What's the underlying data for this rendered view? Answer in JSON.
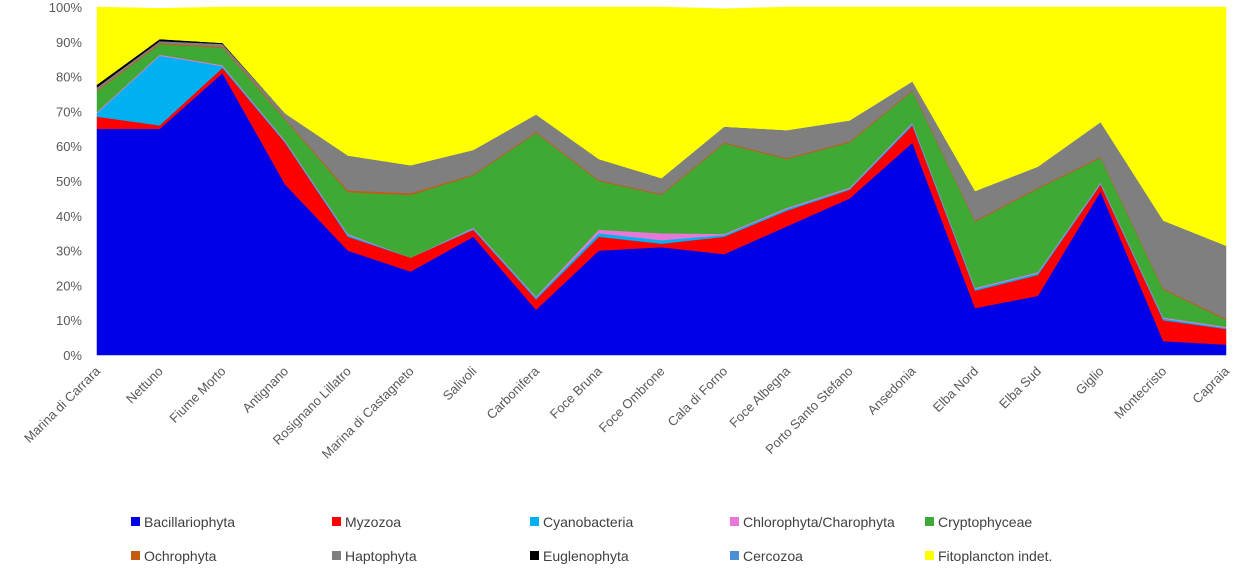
{
  "chart_data": {
    "type": "area",
    "stacked": true,
    "normalized_percent": true,
    "title": "",
    "xlabel": "",
    "ylabel": "",
    "ylim": [
      0,
      100
    ],
    "y_ticks": [
      "0%",
      "10%",
      "20%",
      "30%",
      "40%",
      "50%",
      "60%",
      "70%",
      "80%",
      "90%",
      "100%"
    ],
    "legend_position": "bottom",
    "categories": [
      "Marina di Carrara",
      "Nettuno",
      "Fiume Morto",
      "Antignano",
      "Rosignano Lillatro",
      "Marina di Castagneto",
      "Salivoli",
      "Carbonifera",
      "Foce Bruna",
      "Foce Ombrone",
      "Cala di Forno",
      "Foce Albegna",
      "Porto Santo Stefano",
      "Ansedonia",
      "Elba Nord",
      "Elba Sud",
      "Giglio",
      "Montecristo",
      "Capraia"
    ],
    "series": [
      {
        "name": "Bacillariophyta",
        "color": "#0000E6",
        "values": [
          65,
          65,
          81,
          49,
          30,
          24,
          34,
          13,
          30,
          31,
          29,
          37,
          45,
          61,
          13.5,
          17,
          47,
          4,
          3
        ]
      },
      {
        "name": "Myzozoa",
        "color": "#FF0000",
        "values": [
          3.5,
          1,
          1.5,
          12,
          4,
          4,
          2,
          3,
          4,
          1,
          5,
          4.5,
          2.5,
          5,
          5,
          6,
          2,
          6,
          4.5
        ]
      },
      {
        "name": "Cyanobacteria",
        "color": "#00B0F0",
        "values": [
          1,
          20,
          0.5,
          0.3,
          0.5,
          0,
          0.3,
          0.5,
          1,
          1,
          0.5,
          0.5,
          0.3,
          0.5,
          0.5,
          0.5,
          0.3,
          0.5,
          0.3
        ]
      },
      {
        "name": "Chlorophyta/Charophyta",
        "color": "#E878D8",
        "values": [
          0.3,
          0.3,
          0.3,
          0.3,
          0.3,
          0,
          0.3,
          0.3,
          1,
          2,
          0.3,
          0.3,
          0.3,
          0.3,
          0.3,
          0.3,
          0.3,
          0.3,
          0.3
        ]
      },
      {
        "name": "Cryptophyceae",
        "color": "#3EAA35",
        "values": [
          6,
          3,
          5,
          6,
          12,
          18,
          15,
          47,
          14,
          11,
          26,
          14,
          13,
          9,
          19,
          24,
          7,
          8,
          2
        ]
      },
      {
        "name": "Ochrophyta",
        "color": "#C55A11",
        "values": [
          0.3,
          0.3,
          0.3,
          0.3,
          0.5,
          0.5,
          0.3,
          0.3,
          0.3,
          0.3,
          0.3,
          0.3,
          0.3,
          0.3,
          0.3,
          0.3,
          0.3,
          0.3,
          0.3
        ]
      },
      {
        "name": "Haptophyta",
        "color": "#7F7F7F",
        "values": [
          0.8,
          0.6,
          0.8,
          1.5,
          10,
          8,
          7,
          5,
          6,
          4.5,
          4.5,
          8,
          6,
          2.5,
          8.5,
          6,
          10,
          19.5,
          21
        ]
      },
      {
        "name": "Euglenophyta",
        "color": "#000000",
        "values": [
          0.8,
          0.6,
          0.3,
          0,
          0,
          0,
          0,
          0,
          0,
          0,
          0,
          0,
          0,
          0,
          0,
          0,
          0,
          0,
          0
        ]
      },
      {
        "name": "Cercozoa",
        "color": "#4A90D9",
        "values": [
          0,
          0,
          0,
          0,
          0,
          0,
          0,
          0,
          0,
          0,
          0,
          0,
          0,
          0,
          0,
          0,
          0,
          0,
          0
        ]
      },
      {
        "name": "Fitoplancton indet.",
        "color": "#FFFF00",
        "values": [
          22.3,
          8.8,
          10.3,
          31.6,
          42.7,
          45.5,
          41.1,
          30.9,
          43.7,
          49.2,
          33.9,
          35.4,
          32.6,
          21.4,
          52.9,
          45.9,
          33.1,
          61.4,
          68.6
        ]
      }
    ],
    "legend_rows": [
      [
        "Bacillariophyta",
        "Myzozoa",
        "Cyanobacteria",
        "Chlorophyta/Charophyta",
        "Cryptophyceae"
      ],
      [
        "Ochrophyta",
        "Haptophyta",
        "Euglenophyta",
        "Cercozoa",
        "Fitoplancton indet."
      ]
    ]
  }
}
